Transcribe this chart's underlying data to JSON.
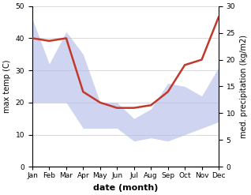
{
  "months": [
    "Jan",
    "Feb",
    "Mar",
    "Apr",
    "May",
    "Jun",
    "Jul",
    "Aug",
    "Sep",
    "Oct",
    "Nov",
    "Dec"
  ],
  "temp_upper": [
    46,
    32,
    42,
    35,
    20,
    20,
    15,
    18,
    26,
    25,
    22,
    31
  ],
  "temp_lower": [
    20,
    20,
    20,
    12,
    12,
    12,
    8,
    9,
    8,
    10,
    12,
    14
  ],
  "precip": [
    24,
    23.5,
    24,
    14,
    12,
    11,
    11,
    11.5,
    14,
    19,
    20,
    28
  ],
  "temp_ylim": [
    0,
    50
  ],
  "precip_ylim": [
    0,
    30
  ],
  "temp_yticks": [
    0,
    10,
    20,
    30,
    40,
    50
  ],
  "precip_yticks": [
    0,
    5,
    10,
    15,
    20,
    25,
    30
  ],
  "fill_color": "#b0b8e8",
  "fill_alpha": 0.6,
  "line_color": "#c0392b",
  "xlabel": "date (month)",
  "ylabel_left": "max temp (C)",
  "ylabel_right": "med. precipitation (kg/m2)",
  "bg_color": "#ffffff",
  "line_width": 1.8,
  "grid_color": "#cccccc",
  "tick_fontsize": 6.5,
  "label_fontsize": 7,
  "xlabel_fontsize": 8
}
